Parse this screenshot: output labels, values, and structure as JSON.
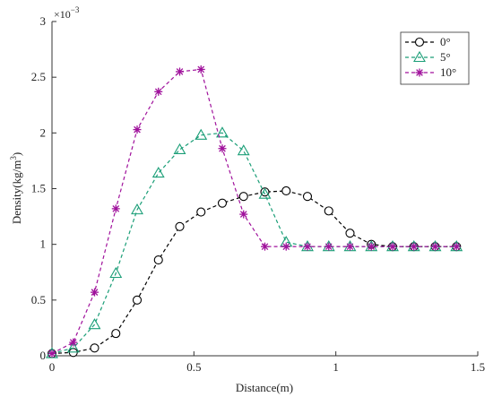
{
  "chart_data": {
    "type": "line",
    "xlabel": "Distance(m)",
    "ylabel": "Density(kg/m³)",
    "ylabel_parts": {
      "text": "Density(kg/m",
      "sup": "3",
      "tail": ")"
    },
    "y_exponent_label": {
      "base": "×10",
      "exp": "−3"
    },
    "xlim": [
      0,
      1.5
    ],
    "ylim": [
      0,
      3
    ],
    "y_scale_factor": 0.001,
    "xticks": [
      0,
      0.5,
      1,
      1.5
    ],
    "xtick_labels": [
      "0",
      "0.5",
      "1",
      "1.5"
    ],
    "yticks": [
      0,
      0.5,
      1,
      1.5,
      2,
      2.5,
      3
    ],
    "ytick_labels": [
      "0",
      "0.5",
      "1",
      "1.5",
      "2",
      "2.5",
      "3"
    ],
    "grid": false,
    "legend_position": "top-right",
    "series": [
      {
        "name": "0°",
        "color": "#000000",
        "marker": "circle",
        "x": [
          0,
          0.075,
          0.15,
          0.225,
          0.3,
          0.375,
          0.45,
          0.525,
          0.6,
          0.675,
          0.75,
          0.825,
          0.9,
          0.975,
          1.05,
          1.125,
          1.2,
          1.275,
          1.35,
          1.425
        ],
        "y": [
          0.02,
          0.03,
          0.07,
          0.2,
          0.5,
          0.86,
          1.16,
          1.29,
          1.37,
          1.43,
          1.47,
          1.48,
          1.43,
          1.3,
          1.1,
          1.0,
          0.98,
          0.98,
          0.98,
          0.98
        ]
      },
      {
        "name": "5°",
        "color": "#1a9e77",
        "marker": "triangle",
        "x": [
          0,
          0.075,
          0.15,
          0.225,
          0.3,
          0.375,
          0.45,
          0.525,
          0.6,
          0.675,
          0.75,
          0.825,
          0.9,
          0.975,
          1.05,
          1.125,
          1.2,
          1.275,
          1.35,
          1.425
        ],
        "y": [
          0.02,
          0.07,
          0.28,
          0.74,
          1.31,
          1.64,
          1.85,
          1.98,
          2.0,
          1.84,
          1.45,
          1.02,
          0.98,
          0.98,
          0.98,
          0.98,
          0.98,
          0.98,
          0.98,
          0.98
        ]
      },
      {
        "name": "10°",
        "color": "#a0129c",
        "marker": "asterisk",
        "x": [
          0,
          0.075,
          0.15,
          0.225,
          0.3,
          0.375,
          0.45,
          0.525,
          0.6,
          0.675,
          0.75,
          0.825,
          0.9,
          0.975,
          1.05,
          1.125,
          1.2,
          1.275,
          1.35,
          1.425
        ],
        "y": [
          0.02,
          0.12,
          0.57,
          1.32,
          2.03,
          2.37,
          2.55,
          2.57,
          1.86,
          1.27,
          0.98,
          0.98,
          0.98,
          0.98,
          0.98,
          0.98,
          0.98,
          0.98,
          0.98,
          0.98
        ]
      }
    ]
  }
}
